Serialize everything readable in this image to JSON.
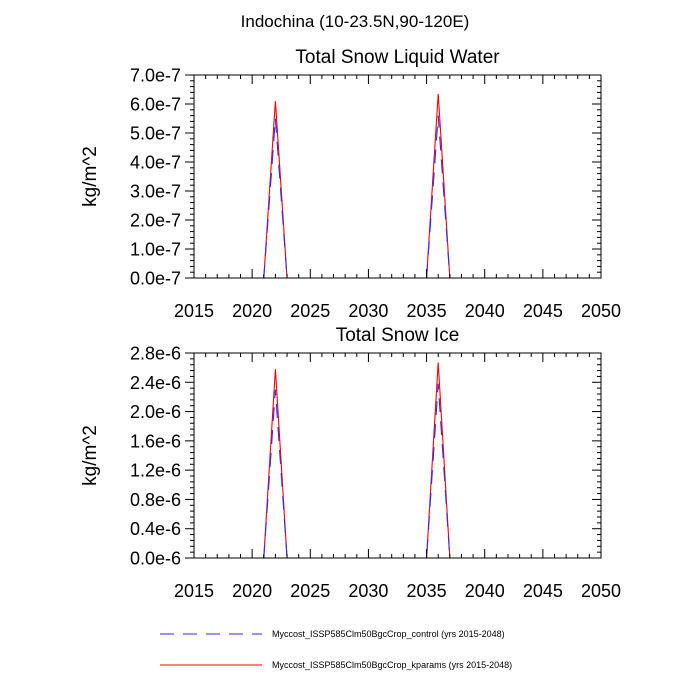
{
  "figure_title": "Indochina (10-23.5N,90-120E)",
  "legend": {
    "entries": [
      {
        "label": "Myccost_ISSP585Clm50BgcCrop_control (yrs 2015-2048)",
        "color": "#2b2bff",
        "style": "dashed"
      },
      {
        "label": "Myccost_ISSP585Clm50BgcCrop_kparams (yrs 2015-2048)",
        "color": "#ff0000",
        "style": "solid"
      }
    ]
  },
  "chart_data": [
    {
      "type": "line",
      "title": "Total Snow Liquid Water",
      "xlabel": "",
      "ylabel": "kg/m^2",
      "xlim": [
        2015,
        2050
      ],
      "ylim": [
        0,
        7e-07
      ],
      "xticks": [
        2015,
        2020,
        2025,
        2030,
        2035,
        2040,
        2045,
        2050
      ],
      "xtick_labels": [
        "2015",
        "2020",
        "2025",
        "2030",
        "2035",
        "2040",
        "2045",
        "2050"
      ],
      "yticks": [
        0,
        1e-07,
        2e-07,
        3e-07,
        4e-07,
        5e-07,
        6e-07,
        7e-07
      ],
      "ytick_labels": [
        "0.0e-7",
        "1.0e-7",
        "2.0e-7",
        "3.0e-7",
        "4.0e-7",
        "5.0e-7",
        "6.0e-7",
        "7.0e-7"
      ],
      "x": [
        2015,
        2016,
        2017,
        2018,
        2019,
        2020,
        2021,
        2022,
        2023,
        2024,
        2025,
        2026,
        2027,
        2028,
        2029,
        2030,
        2031,
        2032,
        2033,
        2034,
        2035,
        2036,
        2037,
        2038,
        2039,
        2040,
        2041,
        2042,
        2043,
        2044,
        2045,
        2046,
        2047,
        2048
      ],
      "series": [
        {
          "name": "Myccost_ISSP585Clm50BgcCrop_kparams (yrs 2015-2048)",
          "color": "#ff0000",
          "style": "solid",
          "values": [
            0,
            0,
            0,
            0,
            0,
            0,
            0,
            6.1e-07,
            0,
            0,
            0,
            0,
            0,
            0,
            0,
            0,
            0,
            0,
            0,
            0,
            0,
            6.35e-07,
            0,
            0,
            0,
            0,
            0,
            0,
            0,
            0,
            0,
            0,
            0,
            0
          ]
        },
        {
          "name": "Myccost_ISSP585Clm50BgcCrop_control (yrs 2015-2048)",
          "color": "#2b2bff",
          "style": "dashed",
          "values": [
            0,
            0,
            0,
            0,
            0,
            0,
            0,
            5.5e-07,
            0,
            0,
            0,
            0,
            0,
            0,
            0,
            0,
            0,
            0,
            0,
            0,
            0,
            5.6e-07,
            0,
            0,
            0,
            0,
            0,
            0,
            0,
            0,
            0,
            0,
            0,
            0
          ]
        }
      ]
    },
    {
      "type": "line",
      "title": "Total Snow Ice",
      "xlabel": "",
      "ylabel": "kg/m^2",
      "xlim": [
        2015,
        2050
      ],
      "ylim": [
        0,
        2.8e-06
      ],
      "xticks": [
        2015,
        2020,
        2025,
        2030,
        2035,
        2040,
        2045,
        2050
      ],
      "xtick_labels": [
        "2015",
        "2020",
        "2025",
        "2030",
        "2035",
        "2040",
        "2045",
        "2050"
      ],
      "yticks": [
        0,
        4e-07,
        8e-07,
        1.2e-06,
        1.6e-06,
        2e-06,
        2.4e-06,
        2.8e-06
      ],
      "ytick_labels": [
        "0.0e-6",
        "0.4e-6",
        "0.8e-6",
        "1.2e-6",
        "1.6e-6",
        "2.0e-6",
        "2.4e-6",
        "2.8e-6"
      ],
      "x": [
        2015,
        2016,
        2017,
        2018,
        2019,
        2020,
        2021,
        2022,
        2023,
        2024,
        2025,
        2026,
        2027,
        2028,
        2029,
        2030,
        2031,
        2032,
        2033,
        2034,
        2035,
        2036,
        2037,
        2038,
        2039,
        2040,
        2041,
        2042,
        2043,
        2044,
        2045,
        2046,
        2047,
        2048
      ],
      "series": [
        {
          "name": "Myccost_ISSP585Clm50BgcCrop_kparams (yrs 2015-2048)",
          "color": "#ff0000",
          "style": "solid",
          "values": [
            0,
            0,
            0,
            0,
            0,
            0,
            0,
            2.58e-06,
            0,
            0,
            0,
            0,
            0,
            0,
            0,
            0,
            0,
            0,
            0,
            0,
            0,
            2.67e-06,
            0,
            0,
            0,
            0,
            0,
            0,
            0,
            0,
            0,
            0,
            0,
            0
          ]
        },
        {
          "name": "Myccost_ISSP585Clm50BgcCrop_control (yrs 2015-2048)",
          "color": "#2b2bff",
          "style": "dashed",
          "values": [
            0,
            0,
            0,
            0,
            0,
            0,
            0,
            2.3e-06,
            0,
            0,
            0,
            0,
            0,
            0,
            0,
            0,
            0,
            0,
            0,
            0,
            0,
            2.38e-06,
            0,
            0,
            0,
            0,
            0,
            0,
            0,
            0,
            0,
            0,
            0,
            0
          ]
        }
      ]
    }
  ]
}
